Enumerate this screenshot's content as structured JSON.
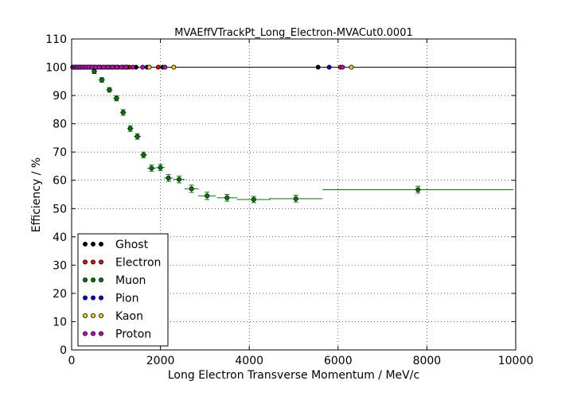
{
  "chart_data": {
    "type": "scatter",
    "title": "MVAEffVTrackPt_Long_Electron-MVACut0.0001",
    "xlabel": "Long Electron Transverse Momentum / MeV/c",
    "ylabel": "Efficiency / %",
    "xlim": [
      0,
      10000
    ],
    "ylim": [
      0,
      110
    ],
    "x_ticks": [
      "0",
      "2000",
      "4000",
      "6000",
      "8000",
      "10000"
    ],
    "y_ticks": [
      "0",
      "10",
      "20",
      "30",
      "40",
      "50",
      "60",
      "70",
      "80",
      "90",
      "100",
      "110"
    ],
    "x_tick_values": [
      0,
      2000,
      4000,
      6000,
      8000,
      10000
    ],
    "y_tick_values": [
      0,
      10,
      20,
      30,
      40,
      50,
      60,
      70,
      80,
      90,
      100,
      110
    ],
    "grid": true,
    "legend_position": "bottom-left",
    "series": [
      {
        "name": "Ghost",
        "color": "#000000",
        "points": [
          {
            "x": 25,
            "y": 100
          },
          {
            "x": 75,
            "y": 100
          },
          {
            "x": 125,
            "y": 100
          },
          {
            "x": 175,
            "y": 100
          },
          {
            "x": 250,
            "y": 100
          },
          {
            "x": 350,
            "y": 100
          },
          {
            "x": 450,
            "y": 100
          },
          {
            "x": 550,
            "y": 100
          },
          {
            "x": 700,
            "y": 100
          },
          {
            "x": 900,
            "y": 100
          },
          {
            "x": 1150,
            "y": 100
          },
          {
            "x": 1450,
            "y": 100
          },
          {
            "x": 2050,
            "y": 100
          },
          {
            "x": 5550,
            "y": 100
          }
        ]
      },
      {
        "name": "Electron",
        "color": "#ff0000",
        "points": [
          {
            "x": 25,
            "y": 100
          },
          {
            "x": 100,
            "y": 100
          },
          {
            "x": 200,
            "y": 100
          },
          {
            "x": 300,
            "y": 100
          },
          {
            "x": 400,
            "y": 100
          },
          {
            "x": 500,
            "y": 100
          },
          {
            "x": 650,
            "y": 100
          },
          {
            "x": 850,
            "y": 100
          },
          {
            "x": 1050,
            "y": 100
          },
          {
            "x": 1300,
            "y": 100
          },
          {
            "x": 1950,
            "y": 100
          },
          {
            "x": 6050,
            "y": 100
          }
        ]
      },
      {
        "name": "Muon",
        "color": "#008000",
        "points": [
          {
            "x": 510,
            "y": 98.5,
            "xerr": 60,
            "yerr": 0.7
          },
          {
            "x": 680,
            "y": 95.5,
            "xerr": 70,
            "yerr": 0.8
          },
          {
            "x": 850,
            "y": 92,
            "xerr": 70,
            "yerr": 0.8
          },
          {
            "x": 1010,
            "y": 89,
            "xerr": 70,
            "yerr": 0.9
          },
          {
            "x": 1160,
            "y": 84,
            "xerr": 70,
            "yerr": 1.0
          },
          {
            "x": 1320,
            "y": 78.3,
            "xerr": 70,
            "yerr": 1.0
          },
          {
            "x": 1480,
            "y": 75.5,
            "xerr": 80,
            "yerr": 1.0
          },
          {
            "x": 1620,
            "y": 69,
            "xerr": 80,
            "yerr": 1.0
          },
          {
            "x": 1800,
            "y": 64.3,
            "xerr": 100,
            "yerr": 1.1
          },
          {
            "x": 2000,
            "y": 64.5,
            "xerr": 100,
            "yerr": 1.1
          },
          {
            "x": 2180,
            "y": 60.8,
            "xerr": 100,
            "yerr": 1.2
          },
          {
            "x": 2420,
            "y": 60.3,
            "xerr": 130,
            "yerr": 1.2
          },
          {
            "x": 2700,
            "y": 57,
            "xerr": 160,
            "yerr": 1.3
          },
          {
            "x": 3050,
            "y": 54.5,
            "xerr": 200,
            "yerr": 1.3
          },
          {
            "x": 3500,
            "y": 53.8,
            "xerr": 230,
            "yerr": 1.2
          },
          {
            "x": 4100,
            "y": 53.2,
            "xerr": 380,
            "yerr": 1.1
          },
          {
            "x": 5050,
            "y": 53.5,
            "xerr": 600,
            "yerr": 1.2
          },
          {
            "x": 7800,
            "y": 56.7,
            "xerr": 2150,
            "yerr": 1.2
          }
        ]
      },
      {
        "name": "Pion",
        "color": "#0000ff",
        "points": [
          {
            "x": 50,
            "y": 100
          },
          {
            "x": 150,
            "y": 100
          },
          {
            "x": 280,
            "y": 100
          },
          {
            "x": 420,
            "y": 100
          },
          {
            "x": 600,
            "y": 100
          },
          {
            "x": 800,
            "y": 100
          },
          {
            "x": 1000,
            "y": 100
          },
          {
            "x": 1250,
            "y": 100
          },
          {
            "x": 1700,
            "y": 100
          },
          {
            "x": 5800,
            "y": 100
          }
        ]
      },
      {
        "name": "Kaon",
        "color": "#ffcc00",
        "points": [
          {
            "x": 120,
            "y": 100
          },
          {
            "x": 230,
            "y": 100
          },
          {
            "x": 380,
            "y": 100
          },
          {
            "x": 520,
            "y": 100
          },
          {
            "x": 750,
            "y": 100
          },
          {
            "x": 950,
            "y": 100
          },
          {
            "x": 1200,
            "y": 100
          },
          {
            "x": 1750,
            "y": 100
          },
          {
            "x": 2300,
            "y": 100
          },
          {
            "x": 6300,
            "y": 100
          }
        ]
      },
      {
        "name": "Proton",
        "color": "#cc00cc",
        "points": [
          {
            "x": 40,
            "y": 100
          },
          {
            "x": 90,
            "y": 100
          },
          {
            "x": 140,
            "y": 100
          },
          {
            "x": 190,
            "y": 100
          },
          {
            "x": 240,
            "y": 100
          },
          {
            "x": 290,
            "y": 100
          },
          {
            "x": 340,
            "y": 100
          },
          {
            "x": 390,
            "y": 100
          },
          {
            "x": 460,
            "y": 100
          },
          {
            "x": 540,
            "y": 100
          },
          {
            "x": 620,
            "y": 100
          },
          {
            "x": 720,
            "y": 100
          },
          {
            "x": 820,
            "y": 100
          },
          {
            "x": 920,
            "y": 100
          },
          {
            "x": 1020,
            "y": 100
          },
          {
            "x": 1120,
            "y": 100
          },
          {
            "x": 1230,
            "y": 100
          },
          {
            "x": 1380,
            "y": 100
          },
          {
            "x": 1600,
            "y": 100
          },
          {
            "x": 2100,
            "y": 100
          },
          {
            "x": 6100,
            "y": 100
          }
        ]
      }
    ]
  }
}
